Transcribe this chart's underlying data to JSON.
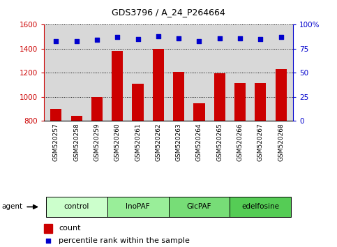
{
  "title": "GDS3796 / A_24_P264664",
  "samples": [
    "GSM520257",
    "GSM520258",
    "GSM520259",
    "GSM520260",
    "GSM520261",
    "GSM520262",
    "GSM520263",
    "GSM520264",
    "GSM520265",
    "GSM520266",
    "GSM520267",
    "GSM520268"
  ],
  "counts": [
    900,
    845,
    1000,
    1385,
    1110,
    1400,
    1210,
    950,
    1195,
    1115,
    1115,
    1230
  ],
  "percentiles": [
    83,
    83,
    84,
    87,
    85,
    88,
    86,
    83,
    86,
    86,
    85,
    87
  ],
  "bar_color": "#cc0000",
  "dot_color": "#0000cc",
  "ylim_left": [
    800,
    1600
  ],
  "ylim_right": [
    0,
    100
  ],
  "yticks_left": [
    800,
    1000,
    1200,
    1400,
    1600
  ],
  "yticks_right": [
    0,
    25,
    50,
    75,
    100
  ],
  "groups": [
    {
      "label": "control",
      "start": 0,
      "end": 3,
      "color": "#ccffcc"
    },
    {
      "label": "InoPAF",
      "start": 3,
      "end": 6,
      "color": "#99ee99"
    },
    {
      "label": "GlcPAF",
      "start": 6,
      "end": 9,
      "color": "#77dd77"
    },
    {
      "label": "edelfosine",
      "start": 9,
      "end": 12,
      "color": "#55cc55"
    }
  ],
  "legend_count_label": "count",
  "legend_pct_label": "percentile rank within the sample",
  "agent_label": "agent",
  "grid_color": "#000000",
  "tick_color_left": "#cc0000",
  "tick_color_right": "#0000cc",
  "bg_color": "#d8d8d8"
}
